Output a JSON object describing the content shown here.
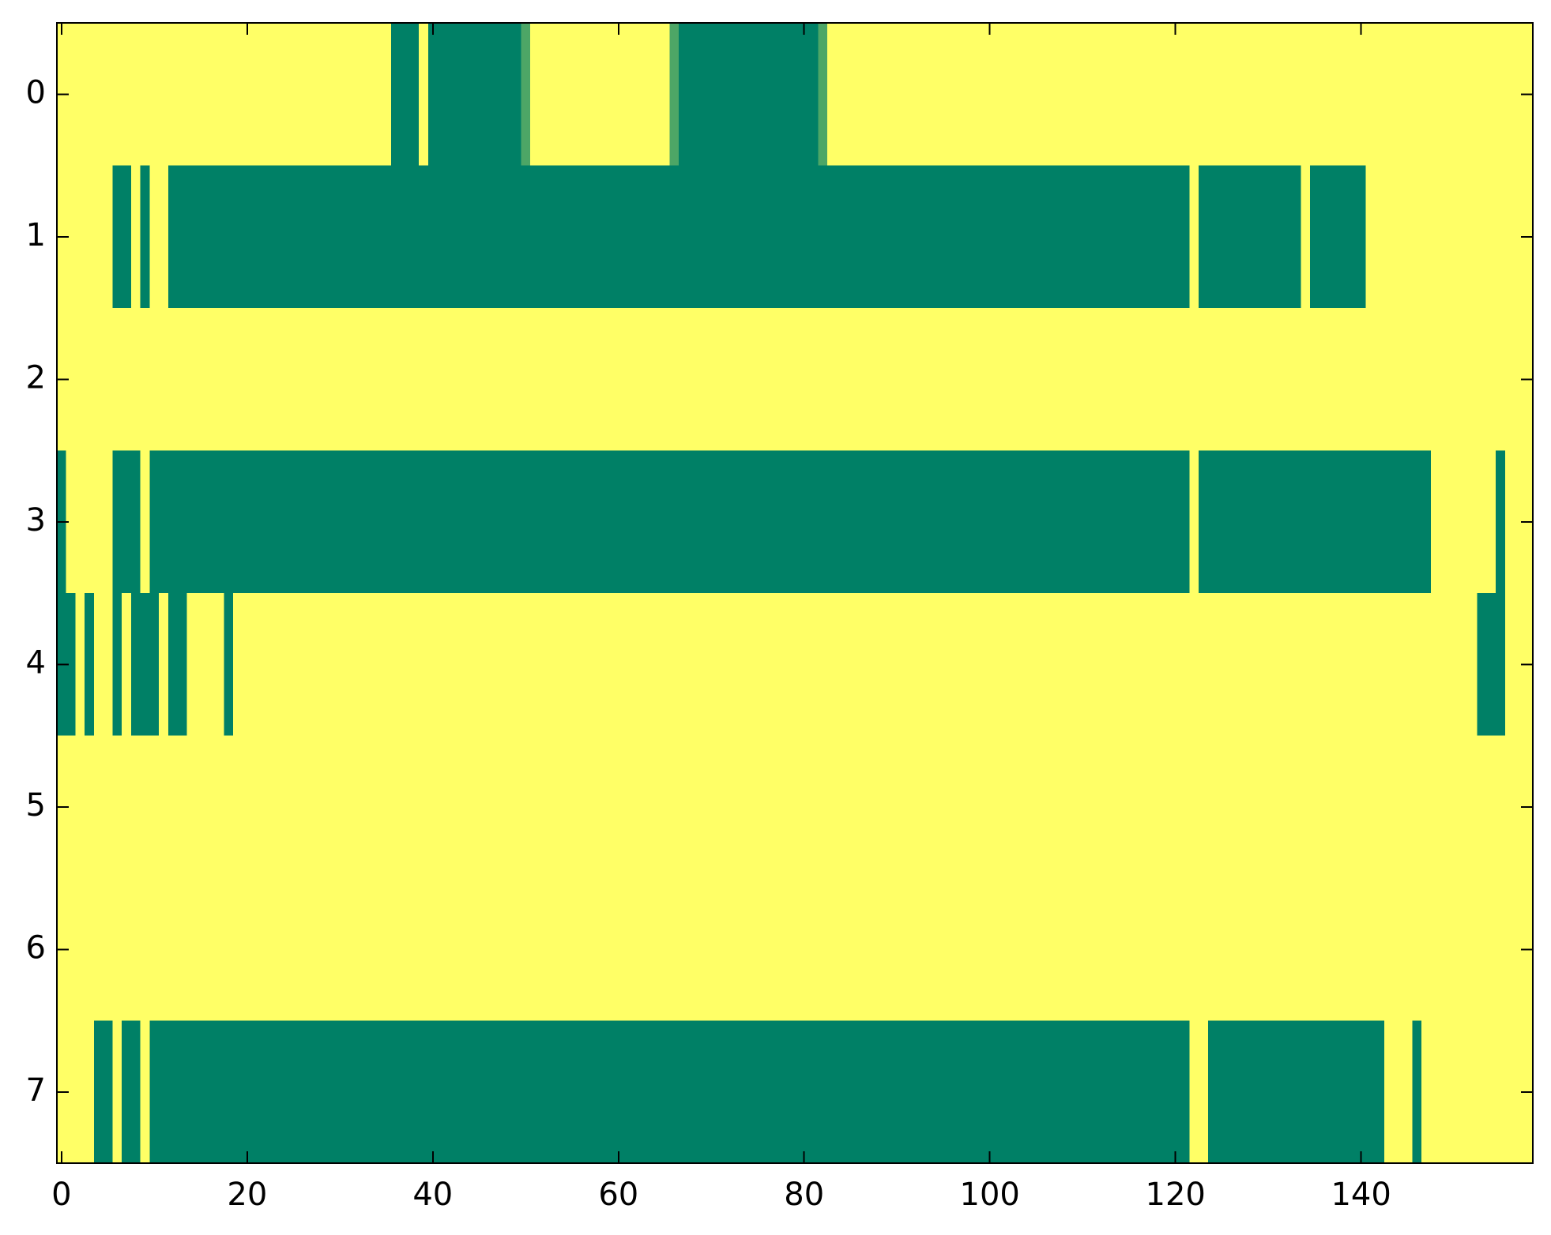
{
  "chart_data": {
    "type": "heatmap",
    "colormap": "summer",
    "zlim": [
      0,
      1
    ],
    "xlim": [
      -0.5,
      158.5
    ],
    "ylim": [
      7.5,
      -0.5
    ],
    "xticks": [
      0,
      20,
      40,
      60,
      80,
      100,
      120,
      140
    ],
    "yticks": [
      0,
      1,
      2,
      3,
      4,
      5,
      6,
      7
    ],
    "z": [
      [
        1,
        1,
        1,
        1,
        1,
        1,
        1,
        1,
        1,
        1,
        1,
        1,
        1,
        1,
        1,
        1,
        1,
        1,
        1,
        1,
        1,
        1,
        1,
        1,
        1,
        1,
        1,
        1,
        1,
        1,
        1,
        1,
        1,
        1,
        1,
        1,
        0,
        0,
        0,
        1,
        0,
        0,
        0,
        0,
        0,
        0,
        0,
        0,
        0,
        0,
        0.3,
        1,
        1,
        1,
        1,
        1,
        1,
        1,
        1,
        1,
        1,
        1,
        1,
        1,
        1,
        1,
        0.3,
        0,
        0,
        0,
        0,
        0,
        0,
        0,
        0,
        0,
        0,
        0,
        0,
        0,
        0,
        0,
        0.3,
        1,
        1,
        1,
        1,
        1,
        1,
        1,
        1,
        1,
        1,
        1,
        1,
        1,
        1,
        1,
        1,
        1,
        1,
        1,
        1,
        1,
        1,
        1,
        1,
        1,
        1,
        1,
        1,
        1,
        1,
        1,
        1,
        1,
        1,
        1,
        1,
        1,
        1,
        1,
        1,
        1,
        1,
        1,
        1,
        1,
        1,
        1,
        1,
        1,
        1,
        1,
        1,
        1,
        1,
        1,
        1,
        1,
        1,
        1,
        1,
        1,
        1,
        1,
        1,
        1,
        1,
        1,
        1,
        1,
        1,
        1,
        1,
        1,
        1,
        1,
        1
      ],
      [
        1,
        1,
        1,
        1,
        1,
        1,
        0,
        0,
        1,
        0,
        1,
        1,
        0,
        0,
        0,
        0,
        0,
        0,
        0,
        0,
        0,
        0,
        0,
        0,
        0,
        0,
        0,
        0,
        0,
        0,
        0,
        0,
        0,
        0,
        0,
        0,
        0,
        0,
        0,
        0,
        0,
        0,
        0,
        0,
        0,
        0,
        0,
        0,
        0,
        0,
        0,
        0,
        0,
        0,
        0,
        0,
        0,
        0,
        0,
        0,
        0,
        0,
        0,
        0,
        0,
        0,
        0,
        0,
        0,
        0,
        0,
        0,
        0,
        0,
        0,
        0,
        0,
        0,
        0,
        0,
        0,
        0,
        0,
        0,
        0,
        0,
        0,
        0,
        0,
        0,
        0,
        0,
        0,
        0,
        0,
        0,
        0,
        0,
        0,
        0,
        0,
        0,
        0,
        0,
        0,
        0,
        0,
        0,
        0,
        0,
        0,
        0,
        0,
        0,
        0,
        0,
        0,
        0,
        0,
        0,
        0,
        0,
        1,
        0,
        0,
        0,
        0,
        0,
        0,
        0,
        0,
        0,
        0,
        0,
        1,
        0,
        0,
        0,
        0,
        0,
        0,
        1,
        1,
        1,
        1,
        1,
        1,
        1,
        1,
        1,
        1,
        1,
        1,
        1,
        1,
        1,
        1,
        1,
        1
      ],
      [
        1,
        1,
        1,
        1,
        1,
        1,
        1,
        1,
        1,
        1,
        1,
        1,
        1,
        1,
        1,
        1,
        1,
        1,
        1,
        1,
        1,
        1,
        1,
        1,
        1,
        1,
        1,
        1,
        1,
        1,
        1,
        1,
        1,
        1,
        1,
        1,
        1,
        1,
        1,
        1,
        1,
        1,
        1,
        1,
        1,
        1,
        1,
        1,
        1,
        1,
        1,
        1,
        1,
        1,
        1,
        1,
        1,
        1,
        1,
        1,
        1,
        1,
        1,
        1,
        1,
        1,
        1,
        1,
        1,
        1,
        1,
        1,
        1,
        1,
        1,
        1,
        1,
        1,
        1,
        1,
        1,
        1,
        1,
        1,
        1,
        1,
        1,
        1,
        1,
        1,
        1,
        1,
        1,
        1,
        1,
        1,
        1,
        1,
        1,
        1,
        1,
        1,
        1,
        1,
        1,
        1,
        1,
        1,
        1,
        1,
        1,
        1,
        1,
        1,
        1,
        1,
        1,
        1,
        1,
        1,
        1,
        1,
        1,
        1,
        1,
        1,
        1,
        1,
        1,
        1,
        1,
        1,
        1,
        1,
        1,
        1,
        1,
        1,
        1,
        1,
        1,
        1,
        1,
        1,
        1,
        1,
        1,
        1,
        1,
        1,
        1,
        1,
        1,
        1,
        1,
        1,
        1,
        1,
        1
      ],
      [
        0,
        1,
        1,
        1,
        1,
        1,
        0,
        0,
        0,
        1,
        0,
        0,
        0,
        0,
        0,
        0,
        0,
        0,
        0,
        0,
        0,
        0,
        0,
        0,
        0,
        0,
        0,
        0,
        0,
        0,
        0,
        0,
        0,
        0,
        0,
        0,
        0,
        0,
        0,
        0,
        0,
        0,
        0,
        0,
        0,
        0,
        0,
        0,
        0,
        0,
        0,
        0,
        0,
        0,
        0,
        0,
        0,
        0,
        0,
        0,
        0,
        0,
        0,
        0,
        0,
        0,
        0,
        0,
        0,
        0,
        0,
        0,
        0,
        0,
        0,
        0,
        0,
        0,
        0,
        0,
        0,
        0,
        0,
        0,
        0,
        0,
        0,
        0,
        0,
        0,
        0,
        0,
        0,
        0,
        0,
        0,
        0,
        0,
        0,
        0,
        0,
        0,
        0,
        0,
        0,
        0,
        0,
        0,
        0,
        0,
        0,
        0,
        0,
        0,
        0,
        0,
        0,
        0,
        0,
        0,
        0,
        0,
        1,
        0,
        0,
        0,
        0,
        0,
        0,
        0,
        0,
        0,
        0,
        0,
        0,
        0,
        0,
        0,
        0,
        0,
        0,
        0,
        0,
        0,
        0,
        0,
        0,
        0,
        1,
        1,
        1,
        1,
        1,
        1,
        1,
        0,
        1,
        1,
        1
      ],
      [
        0,
        0,
        1,
        0,
        1,
        1,
        0,
        1,
        0,
        0,
        0,
        1,
        0,
        0,
        1,
        1,
        1,
        1,
        0,
        1,
        1,
        1,
        1,
        1,
        1,
        1,
        1,
        1,
        1,
        1,
        1,
        1,
        1,
        1,
        1,
        1,
        1,
        1,
        1,
        1,
        1,
        1,
        1,
        1,
        1,
        1,
        1,
        1,
        1,
        1,
        1,
        1,
        1,
        1,
        1,
        1,
        1,
        1,
        1,
        1,
        1,
        1,
        1,
        1,
        1,
        1,
        1,
        1,
        1,
        1,
        1,
        1,
        1,
        1,
        1,
        1,
        1,
        1,
        1,
        1,
        1,
        1,
        1,
        1,
        1,
        1,
        1,
        1,
        1,
        1,
        1,
        1,
        1,
        1,
        1,
        1,
        1,
        1,
        1,
        1,
        1,
        1,
        1,
        1,
        1,
        1,
        1,
        1,
        1,
        1,
        1,
        1,
        1,
        1,
        1,
        1,
        1,
        1,
        1,
        1,
        1,
        1,
        1,
        1,
        1,
        1,
        1,
        1,
        1,
        1,
        1,
        1,
        1,
        1,
        1,
        1,
        1,
        1,
        1,
        1,
        1,
        1,
        1,
        1,
        1,
        1,
        1,
        1,
        1,
        1,
        1,
        1,
        1,
        0,
        0,
        0,
        1,
        1,
        1
      ],
      [
        1,
        1,
        1,
        1,
        1,
        1,
        1,
        1,
        1,
        1,
        1,
        1,
        1,
        1,
        1,
        1,
        1,
        1,
        1,
        1,
        1,
        1,
        1,
        1,
        1,
        1,
        1,
        1,
        1,
        1,
        1,
        1,
        1,
        1,
        1,
        1,
        1,
        1,
        1,
        1,
        1,
        1,
        1,
        1,
        1,
        1,
        1,
        1,
        1,
        1,
        1,
        1,
        1,
        1,
        1,
        1,
        1,
        1,
        1,
        1,
        1,
        1,
        1,
        1,
        1,
        1,
        1,
        1,
        1,
        1,
        1,
        1,
        1,
        1,
        1,
        1,
        1,
        1,
        1,
        1,
        1,
        1,
        1,
        1,
        1,
        1,
        1,
        1,
        1,
        1,
        1,
        1,
        1,
        1,
        1,
        1,
        1,
        1,
        1,
        1,
        1,
        1,
        1,
        1,
        1,
        1,
        1,
        1,
        1,
        1,
        1,
        1,
        1,
        1,
        1,
        1,
        1,
        1,
        1,
        1,
        1,
        1,
        1,
        1,
        1,
        1,
        1,
        1,
        1,
        1,
        1,
        1,
        1,
        1,
        1,
        1,
        1,
        1,
        1,
        1,
        1,
        1,
        1,
        1,
        1,
        1,
        1,
        1,
        1,
        1,
        1,
        1,
        1,
        1,
        1,
        1,
        1,
        1,
        1
      ],
      [
        1,
        1,
        1,
        1,
        1,
        1,
        1,
        1,
        1,
        1,
        1,
        1,
        1,
        1,
        1,
        1,
        1,
        1,
        1,
        1,
        1,
        1,
        1,
        1,
        1,
        1,
        1,
        1,
        1,
        1,
        1,
        1,
        1,
        1,
        1,
        1,
        1,
        1,
        1,
        1,
        1,
        1,
        1,
        1,
        1,
        1,
        1,
        1,
        1,
        1,
        1,
        1,
        1,
        1,
        1,
        1,
        1,
        1,
        1,
        1,
        1,
        1,
        1,
        1,
        1,
        1,
        1,
        1,
        1,
        1,
        1,
        1,
        1,
        1,
        1,
        1,
        1,
        1,
        1,
        1,
        1,
        1,
        1,
        1,
        1,
        1,
        1,
        1,
        1,
        1,
        1,
        1,
        1,
        1,
        1,
        1,
        1,
        1,
        1,
        1,
        1,
        1,
        1,
        1,
        1,
        1,
        1,
        1,
        1,
        1,
        1,
        1,
        1,
        1,
        1,
        1,
        1,
        1,
        1,
        1,
        1,
        1,
        1,
        1,
        1,
        1,
        1,
        1,
        1,
        1,
        1,
        1,
        1,
        1,
        1,
        1,
        1,
        1,
        1,
        1,
        1,
        1,
        1,
        1,
        1,
        1,
        1,
        1,
        1,
        1,
        1,
        1,
        1,
        1,
        1,
        1,
        1,
        1,
        1
      ],
      [
        1,
        1,
        1,
        1,
        0,
        0,
        1,
        0,
        0,
        1,
        0,
        0,
        0,
        0,
        0,
        0,
        0,
        0,
        0,
        0,
        0,
        0,
        0,
        0,
        0,
        0,
        0,
        0,
        0,
        0,
        0,
        0,
        0,
        0,
        0,
        0,
        0,
        0,
        0,
        0,
        0,
        0,
        0,
        0,
        0,
        0,
        0,
        0,
        0,
        0,
        0,
        0,
        0,
        0,
        0,
        0,
        0,
        0,
        0,
        0,
        0,
        0,
        0,
        0,
        0,
        0,
        0,
        0,
        0,
        0,
        0,
        0,
        0,
        0,
        0,
        0,
        0,
        0,
        0,
        0,
        0,
        0,
        0,
        0,
        0,
        0,
        0,
        0,
        0,
        0,
        0,
        0,
        0,
        0,
        0,
        0,
        0,
        0,
        0,
        0,
        0,
        0,
        0,
        0,
        0,
        0,
        0,
        0,
        0,
        0,
        0,
        0,
        0,
        0,
        0,
        0,
        0,
        0,
        0,
        0,
        0,
        0,
        1,
        1,
        0,
        0,
        0,
        0,
        0,
        0,
        0,
        0,
        0,
        0,
        0,
        0,
        0,
        0,
        0,
        0,
        0,
        0,
        0,
        1,
        1,
        1,
        0,
        1,
        1,
        1,
        1,
        1,
        1,
        1,
        1,
        1,
        1,
        1,
        1
      ]
    ]
  }
}
